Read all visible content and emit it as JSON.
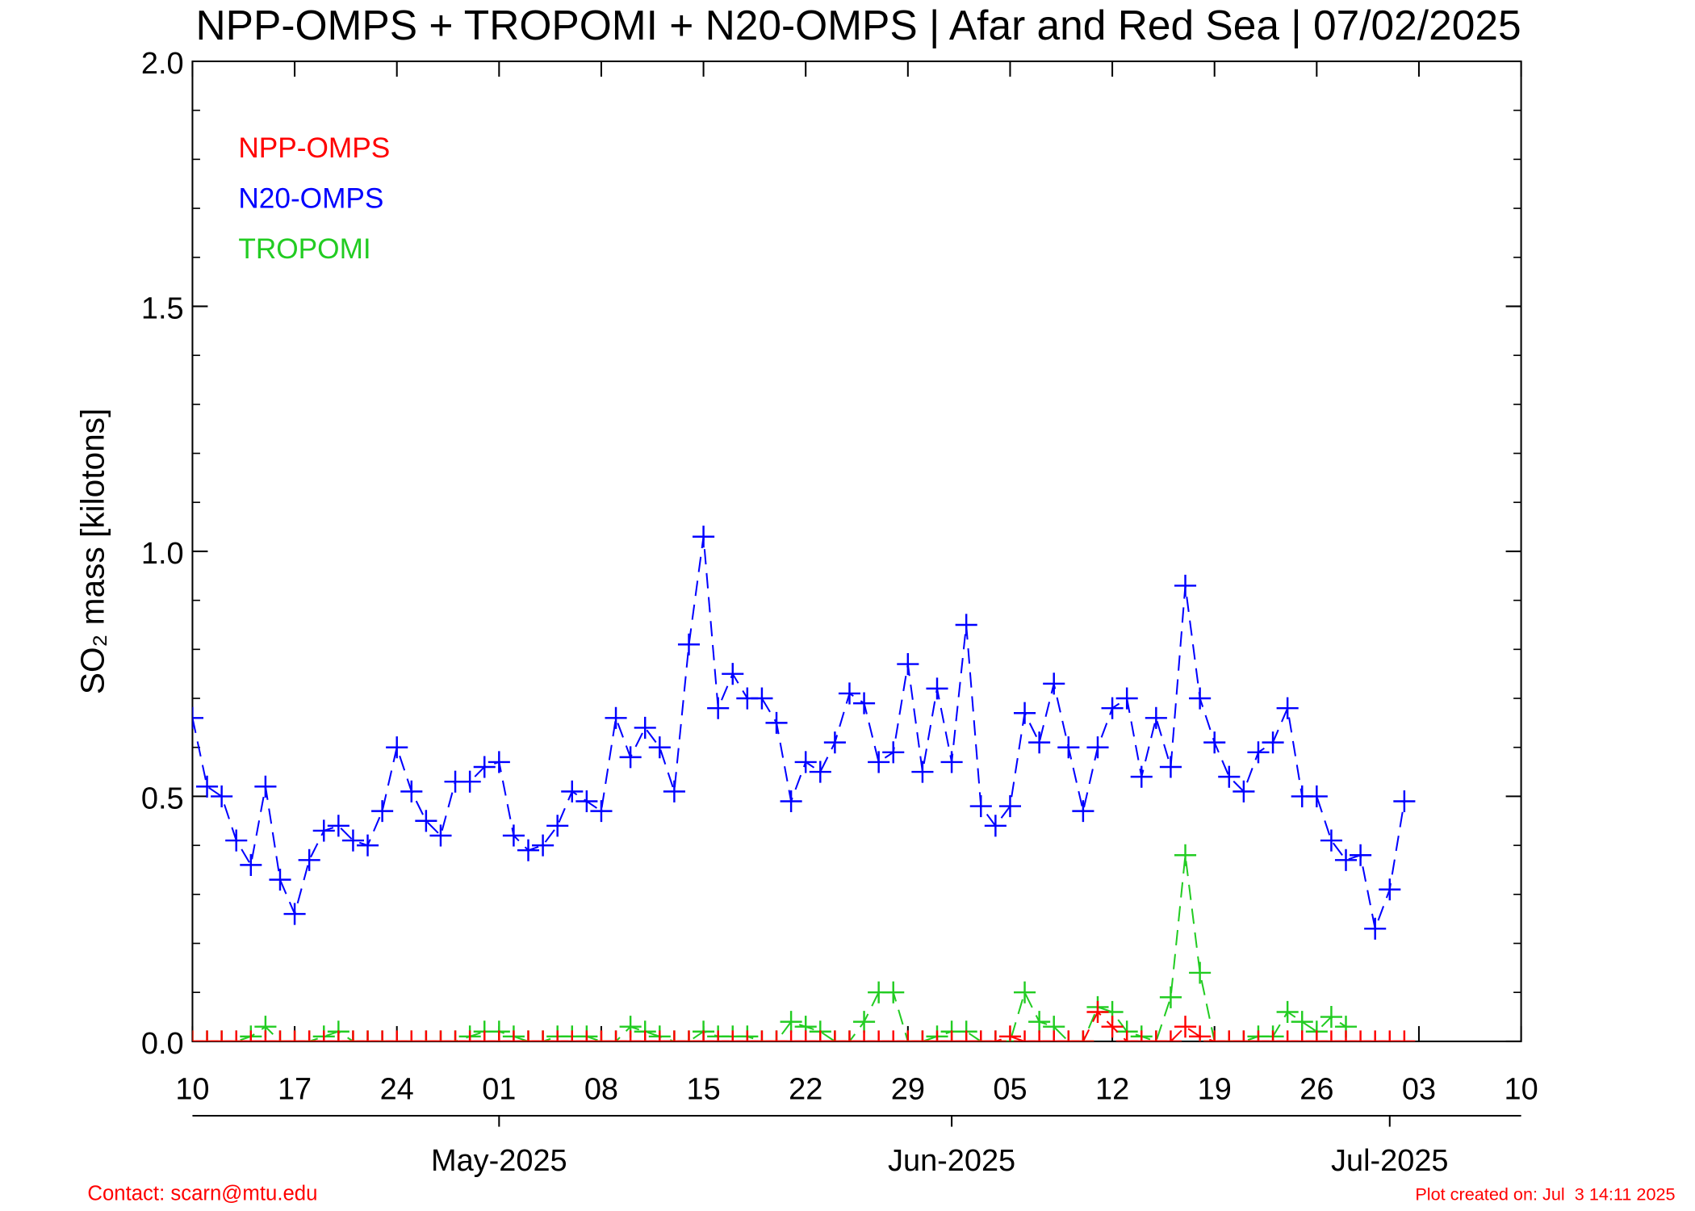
{
  "chart_data": {
    "type": "line",
    "title": "NPP-OMPS + TROPOMI + N20-OMPS | Afar and Red Sea | 07/02/2025",
    "ylabel": "SO₂ mass [kilotons]",
    "x": [
      "2025-04-10",
      "2025-04-11",
      "2025-04-12",
      "2025-04-13",
      "2025-04-14",
      "2025-04-15",
      "2025-04-16",
      "2025-04-17",
      "2025-04-18",
      "2025-04-19",
      "2025-04-20",
      "2025-04-21",
      "2025-04-22",
      "2025-04-23",
      "2025-04-24",
      "2025-04-25",
      "2025-04-26",
      "2025-04-27",
      "2025-04-28",
      "2025-04-29",
      "2025-04-30",
      "2025-05-01",
      "2025-05-02",
      "2025-05-03",
      "2025-05-04",
      "2025-05-05",
      "2025-05-06",
      "2025-05-07",
      "2025-05-08",
      "2025-05-09",
      "2025-05-10",
      "2025-05-11",
      "2025-05-12",
      "2025-05-13",
      "2025-05-14",
      "2025-05-15",
      "2025-05-16",
      "2025-05-17",
      "2025-05-18",
      "2025-05-19",
      "2025-05-20",
      "2025-05-21",
      "2025-05-22",
      "2025-05-23",
      "2025-05-24",
      "2025-05-25",
      "2025-05-26",
      "2025-05-27",
      "2025-05-28",
      "2025-05-29",
      "2025-05-30",
      "2025-05-31",
      "2025-06-01",
      "2025-06-02",
      "2025-06-03",
      "2025-06-04",
      "2025-06-05",
      "2025-06-06",
      "2025-06-07",
      "2025-06-08",
      "2025-06-09",
      "2025-06-10",
      "2025-06-11",
      "2025-06-12",
      "2025-06-13",
      "2025-06-14",
      "2025-06-15",
      "2025-06-16",
      "2025-06-17",
      "2025-06-18",
      "2025-06-19",
      "2025-06-20",
      "2025-06-21",
      "2025-06-22",
      "2025-06-23",
      "2025-06-24",
      "2025-06-25",
      "2025-06-26",
      "2025-06-27",
      "2025-06-28",
      "2025-06-29",
      "2025-06-30",
      "2025-07-01",
      "2025-07-02"
    ],
    "series": [
      {
        "name": "NPP-OMPS",
        "color": "#ff0000",
        "values": [
          0,
          0,
          0,
          0,
          0,
          0,
          0,
          0,
          0,
          0,
          0,
          0,
          0,
          0,
          0,
          0,
          0,
          0,
          0,
          0,
          0,
          0,
          0,
          0,
          0,
          0,
          0,
          0,
          0,
          0,
          0,
          0,
          0,
          0,
          0,
          0,
          0,
          0,
          0,
          0,
          0,
          0,
          0,
          0,
          0,
          0,
          0,
          0,
          0,
          0,
          0,
          0,
          0,
          0,
          0,
          0,
          0.01,
          0,
          0,
          0,
          0,
          0,
          0.06,
          0.03,
          0,
          0,
          0,
          0,
          0.03,
          0.01,
          0,
          0,
          0,
          0,
          0,
          0,
          0,
          0,
          0,
          0,
          0,
          0,
          0,
          0
        ]
      },
      {
        "name": "N20-OMPS",
        "color": "#0000ff",
        "values": [
          0.66,
          0.52,
          0.5,
          0.41,
          0.36,
          0.52,
          0.33,
          0.26,
          0.37,
          0.43,
          0.44,
          0.41,
          0.4,
          0.47,
          0.6,
          0.51,
          0.45,
          0.42,
          0.53,
          0.53,
          0.56,
          0.57,
          0.42,
          0.39,
          0.4,
          0.44,
          0.51,
          0.49,
          0.47,
          0.66,
          0.58,
          0.64,
          0.6,
          0.51,
          0.81,
          1.03,
          0.68,
          0.75,
          0.7,
          0.7,
          0.65,
          0.49,
          0.57,
          0.55,
          0.61,
          0.71,
          0.69,
          0.57,
          0.59,
          0.77,
          0.55,
          0.72,
          0.57,
          0.85,
          0.48,
          0.44,
          0.48,
          0.67,
          0.61,
          0.73,
          0.6,
          0.47,
          0.6,
          0.68,
          0.7,
          0.54,
          0.66,
          0.56,
          0.93,
          0.7,
          0.61,
          0.54,
          0.51,
          0.59,
          0.61,
          0.68,
          0.5,
          0.5,
          0.41,
          0.37,
          0.38,
          0.23,
          0.31,
          0.49
        ]
      },
      {
        "name": "TROPOMI",
        "color": "#22cc22",
        "values": [
          0,
          0,
          0,
          0,
          0.01,
          0.03,
          0,
          0,
          0,
          0.01,
          0.02,
          0,
          0,
          0,
          0,
          0,
          0,
          0,
          0,
          0.01,
          0.02,
          0.02,
          0.01,
          0,
          0,
          0.01,
          0.01,
          0.01,
          0,
          0,
          0.03,
          0.02,
          0.01,
          0,
          0,
          0.02,
          0.01,
          0.01,
          0.01,
          0,
          0,
          0.04,
          0.03,
          0.02,
          0,
          0,
          0.04,
          0.1,
          0.1,
          0,
          0,
          0.01,
          0.02,
          0.02,
          0,
          0,
          0,
          0.1,
          0.04,
          0.03,
          0,
          0,
          0.07,
          0.06,
          0.02,
          0.01,
          0,
          0.09,
          0.38,
          0.14,
          0,
          0,
          0,
          0.01,
          0.01,
          0.06,
          0.04,
          0.02,
          0.05,
          0.03,
          null,
          null,
          null,
          null
        ]
      }
    ],
    "xlim": [
      "2025-04-10",
      "2025-07-10"
    ],
    "xticks": [
      {
        "value": "2025-04-10",
        "label": "10"
      },
      {
        "value": "2025-04-17",
        "label": "17"
      },
      {
        "value": "2025-04-24",
        "label": "24"
      },
      {
        "value": "2025-05-01",
        "label": "01"
      },
      {
        "value": "2025-05-08",
        "label": "08"
      },
      {
        "value": "2025-05-15",
        "label": "15"
      },
      {
        "value": "2025-05-22",
        "label": "22"
      },
      {
        "value": "2025-05-29",
        "label": "29"
      },
      {
        "value": "2025-06-05",
        "label": "05"
      },
      {
        "value": "2025-06-12",
        "label": "12"
      },
      {
        "value": "2025-06-19",
        "label": "19"
      },
      {
        "value": "2025-06-26",
        "label": "26"
      },
      {
        "value": "2025-07-03",
        "label": "03"
      },
      {
        "value": "2025-07-10",
        "label": "10"
      }
    ],
    "month_ticks": [
      {
        "value": "2025-05-01",
        "label": "May-2025"
      },
      {
        "value": "2025-06-01",
        "label": "Jun-2025"
      },
      {
        "value": "2025-07-01",
        "label": "Jul-2025"
      }
    ],
    "ylim": [
      0,
      2
    ],
    "yticks": [
      {
        "value": 0,
        "label": "0.0"
      },
      0.5,
      {
        "value": 1,
        "label": "1.0"
      },
      1.5,
      {
        "value": 2,
        "label": "2.0"
      }
    ],
    "yminorticks": [
      0.1,
      0.2,
      0.3,
      0.4,
      0.6,
      0.7,
      0.8,
      0.9,
      1.1,
      1.2,
      1.3,
      1.4,
      1.6,
      1.7,
      1.8,
      1.9
    ],
    "legend": "upper left",
    "line_style": "dashed",
    "marker": "plus",
    "footer_left": "Contact: scarn@mtu.edu",
    "footer_right": "Plot created on: Jul  3 14:11 2025"
  }
}
